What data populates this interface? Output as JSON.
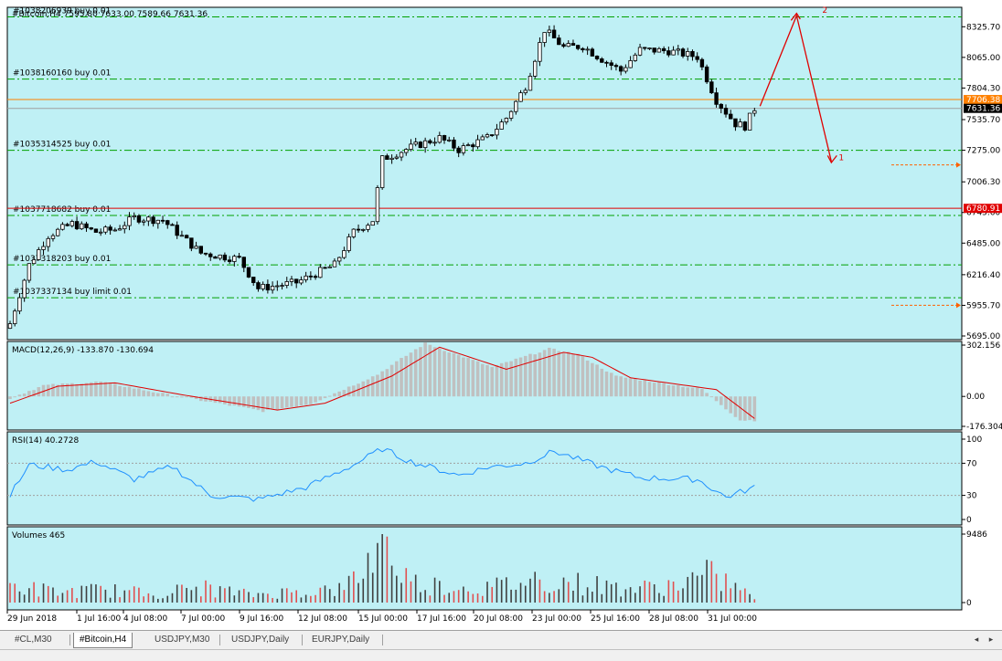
{
  "chart_data": [
    {
      "type": "candlestick",
      "title": "#Bitcoin,H4 7595.80 7633.00 7589.66 7631.36",
      "symbol": "#Bitcoin",
      "timeframe": "H4",
      "ylim": [
        5695.0,
        8460.0
      ],
      "y_ticks": [
        "8325.70",
        "8065.00",
        "7804.30",
        "7535.70",
        "7275.00",
        "7006.30",
        "6745.60",
        "6485.00",
        "6216.40",
        "5955.70",
        "5695.00"
      ],
      "x_ticks": [
        "29 Jun 2018",
        "1 Jul 16:00",
        "4 Jul 08:00",
        "7 Jul 00:00",
        "9 Jul 16:00",
        "12 Jul 08:00",
        "15 Jul 00:00",
        "17 Jul 16:00",
        "20 Jul 08:00",
        "23 Jul 00:00",
        "25 Jul 16:00",
        "28 Jul 08:00",
        "31 Jul 00:00"
      ],
      "price_labels": [
        {
          "text": "7706.38",
          "price": 7706.38,
          "color": "#ff8000"
        },
        {
          "text": "7631.36",
          "price": 7631.36,
          "color": "#000000"
        },
        {
          "text": "6780.91",
          "price": 6780.91,
          "color": "#e00000"
        }
      ],
      "orders": [
        {
          "label": "#1038206939 buy 0.01",
          "price": 8410
        },
        {
          "label": "#1038160160 buy 0.01",
          "price": 7880
        },
        {
          "label": "#1035314525 buy 0.01",
          "price": 7275
        },
        {
          "label": "#1037718682 buy 0.01",
          "price": 6720
        },
        {
          "label": "#1037318203 buy 0.01",
          "price": 6300
        },
        {
          "label": "#1037337134 buy limit 0.01",
          "price": 6020
        }
      ],
      "key_levels": [
        {
          "price": 7706.38,
          "color": "#ff8000"
        },
        {
          "price": 6780.91,
          "color": "#e00000"
        }
      ],
      "key_points": [
        {
          "x": 0,
          "y": 5800
        },
        {
          "x": 4,
          "y": 6300
        },
        {
          "x": 8,
          "y": 6550
        },
        {
          "x": 13,
          "y": 6650
        },
        {
          "x": 18,
          "y": 6580
        },
        {
          "x": 22,
          "y": 6600
        },
        {
          "x": 26,
          "y": 6700
        },
        {
          "x": 32,
          "y": 6680
        },
        {
          "x": 40,
          "y": 6400
        },
        {
          "x": 48,
          "y": 6350
        },
        {
          "x": 52,
          "y": 6100
        },
        {
          "x": 60,
          "y": 6150
        },
        {
          "x": 68,
          "y": 6300
        },
        {
          "x": 72,
          "y": 6580
        },
        {
          "x": 76,
          "y": 6680
        },
        {
          "x": 78,
          "y": 7200
        },
        {
          "x": 84,
          "y": 7300
        },
        {
          "x": 90,
          "y": 7380
        },
        {
          "x": 94,
          "y": 7280
        },
        {
          "x": 100,
          "y": 7380
        },
        {
          "x": 104,
          "y": 7550
        },
        {
          "x": 108,
          "y": 7820
        },
        {
          "x": 112,
          "y": 8300
        },
        {
          "x": 116,
          "y": 8150
        },
        {
          "x": 120,
          "y": 8160
        },
        {
          "x": 124,
          "y": 8050
        },
        {
          "x": 128,
          "y": 7950
        },
        {
          "x": 132,
          "y": 8130
        },
        {
          "x": 138,
          "y": 8120
        },
        {
          "x": 144,
          "y": 8070
        },
        {
          "x": 148,
          "y": 7700
        },
        {
          "x": 152,
          "y": 7500
        },
        {
          "x": 154,
          "y": 7480
        },
        {
          "x": 156,
          "y": 7630
        }
      ],
      "annotations": [
        {
          "text": "2",
          "color": "#e00000"
        },
        {
          "text": "1",
          "color": "#e00000"
        }
      ]
    },
    {
      "type": "line",
      "title": "MACD(12,26,9) -133.870 -130.694",
      "indicator": "MACD",
      "params": [
        12,
        26,
        9
      ],
      "values": [
        -133.87,
        -130.694
      ],
      "y_ticks": [
        "302.156",
        "0.00",
        "-176.304"
      ],
      "ylim": [
        -176.304,
        302.156
      ],
      "signal_key_points": [
        {
          "x": 0,
          "y": -40
        },
        {
          "x": 10,
          "y": 60
        },
        {
          "x": 22,
          "y": 80
        },
        {
          "x": 36,
          "y": 10
        },
        {
          "x": 56,
          "y": -80
        },
        {
          "x": 66,
          "y": -40
        },
        {
          "x": 80,
          "y": 120
        },
        {
          "x": 90,
          "y": 290
        },
        {
          "x": 104,
          "y": 160
        },
        {
          "x": 116,
          "y": 260
        },
        {
          "x": 122,
          "y": 230
        },
        {
          "x": 130,
          "y": 110
        },
        {
          "x": 148,
          "y": 40
        },
        {
          "x": 156,
          "y": -130
        }
      ]
    },
    {
      "type": "line",
      "title": "RSI(14) 40.2728",
      "indicator": "RSI",
      "params": [
        14
      ],
      "value": 40.2728,
      "y_ticks": [
        "100",
        "70",
        "30",
        "0"
      ],
      "ylim": [
        0,
        100
      ],
      "levels": [
        70,
        30
      ],
      "key_points": [
        {
          "x": 0,
          "y": 30
        },
        {
          "x": 4,
          "y": 68
        },
        {
          "x": 12,
          "y": 62
        },
        {
          "x": 18,
          "y": 72
        },
        {
          "x": 26,
          "y": 50
        },
        {
          "x": 34,
          "y": 66
        },
        {
          "x": 42,
          "y": 30
        },
        {
          "x": 52,
          "y": 25
        },
        {
          "x": 62,
          "y": 40
        },
        {
          "x": 72,
          "y": 68
        },
        {
          "x": 78,
          "y": 88
        },
        {
          "x": 84,
          "y": 72
        },
        {
          "x": 94,
          "y": 55
        },
        {
          "x": 100,
          "y": 65
        },
        {
          "x": 108,
          "y": 70
        },
        {
          "x": 114,
          "y": 85
        },
        {
          "x": 124,
          "y": 65
        },
        {
          "x": 132,
          "y": 52
        },
        {
          "x": 144,
          "y": 50
        },
        {
          "x": 150,
          "y": 28
        },
        {
          "x": 156,
          "y": 40
        }
      ]
    },
    {
      "type": "bar",
      "title": "Volumes 465",
      "indicator": "Volumes",
      "value": 465,
      "y_ticks": [
        "9486",
        "0"
      ],
      "ylim": [
        0,
        9486
      ],
      "key_points": [
        {
          "x": 0,
          "y": 3000
        },
        {
          "x": 10,
          "y": 1800
        },
        {
          "x": 20,
          "y": 2200
        },
        {
          "x": 30,
          "y": 1500
        },
        {
          "x": 40,
          "y": 2600
        },
        {
          "x": 50,
          "y": 1400
        },
        {
          "x": 60,
          "y": 1900
        },
        {
          "x": 70,
          "y": 2300
        },
        {
          "x": 78,
          "y": 9486
        },
        {
          "x": 84,
          "y": 3500
        },
        {
          "x": 92,
          "y": 2800
        },
        {
          "x": 100,
          "y": 2500
        },
        {
          "x": 110,
          "y": 4000
        },
        {
          "x": 116,
          "y": 3600
        },
        {
          "x": 124,
          "y": 2900
        },
        {
          "x": 132,
          "y": 2400
        },
        {
          "x": 140,
          "y": 3200
        },
        {
          "x": 146,
          "y": 4800
        },
        {
          "x": 152,
          "y": 3000
        },
        {
          "x": 156,
          "y": 465
        }
      ]
    }
  ],
  "tabs": [
    "#CL,M30",
    "#Bitcoin,H4",
    "USDJPY,M30",
    "USDJPY,Daily",
    "EURJPY,Daily"
  ],
  "active_tab": 1,
  "colors": {
    "background": "#bff0f5",
    "bull": "#ffffff",
    "bear": "#000000",
    "grid_order": "#00a000",
    "macd_hist": "#c0c0c0",
    "macd_signal": "#e00000",
    "rsi_line": "#1e90ff",
    "volume_up": "#404040",
    "volume_down": "#e05050"
  }
}
